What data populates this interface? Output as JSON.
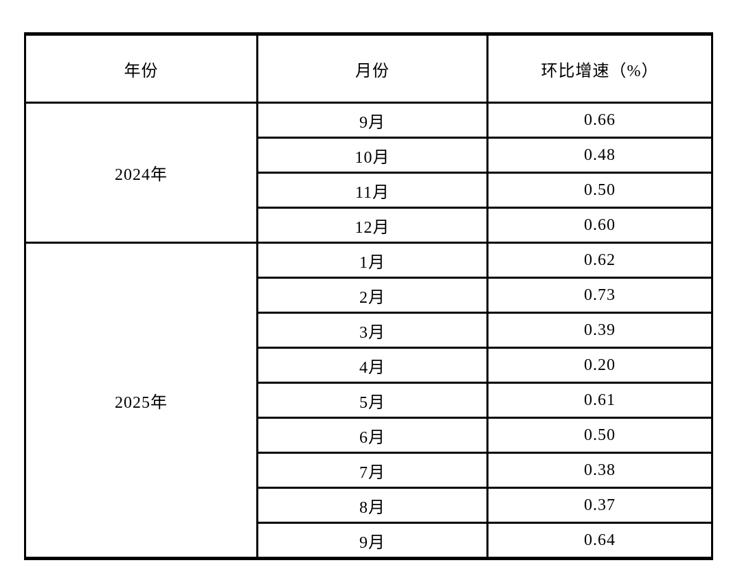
{
  "table": {
    "headers": [
      "年份",
      "月份",
      "环比增速（%）"
    ],
    "groups": [
      {
        "year": "2024年",
        "rows": [
          {
            "month": "9月",
            "value": "0.66"
          },
          {
            "month": "10月",
            "value": "0.48"
          },
          {
            "month": "11月",
            "value": "0.50"
          },
          {
            "month": "12月",
            "value": "0.60"
          }
        ]
      },
      {
        "year": "2025年",
        "rows": [
          {
            "month": "1月",
            "value": "0.62"
          },
          {
            "month": "2月",
            "value": "0.73"
          },
          {
            "month": "3月",
            "value": "0.39"
          },
          {
            "month": "4月",
            "value": "0.20"
          },
          {
            "month": "5月",
            "value": "0.61"
          },
          {
            "month": "6月",
            "value": "0.50"
          },
          {
            "month": "7月",
            "value": "0.38"
          },
          {
            "month": "8月",
            "value": "0.37"
          },
          {
            "month": "9月",
            "value": "0.64"
          }
        ]
      }
    ]
  },
  "chart_data": {
    "type": "table",
    "title": "环比增速（%）",
    "columns": [
      "年份",
      "月份",
      "环比增速（%）"
    ],
    "rows": [
      [
        "2024年",
        "9月",
        0.66
      ],
      [
        "2024年",
        "10月",
        0.48
      ],
      [
        "2024年",
        "11月",
        0.5
      ],
      [
        "2024年",
        "12月",
        0.6
      ],
      [
        "2025年",
        "1月",
        0.62
      ],
      [
        "2025年",
        "2月",
        0.73
      ],
      [
        "2025年",
        "3月",
        0.39
      ],
      [
        "2025年",
        "4月",
        0.2
      ],
      [
        "2025年",
        "5月",
        0.61
      ],
      [
        "2025年",
        "6月",
        0.5
      ],
      [
        "2025年",
        "7月",
        0.38
      ],
      [
        "2025年",
        "8月",
        0.37
      ],
      [
        "2025年",
        "9月",
        0.64
      ]
    ]
  },
  "colors": {
    "background": "#ffffff",
    "border": "#000000",
    "text": "#000000"
  }
}
